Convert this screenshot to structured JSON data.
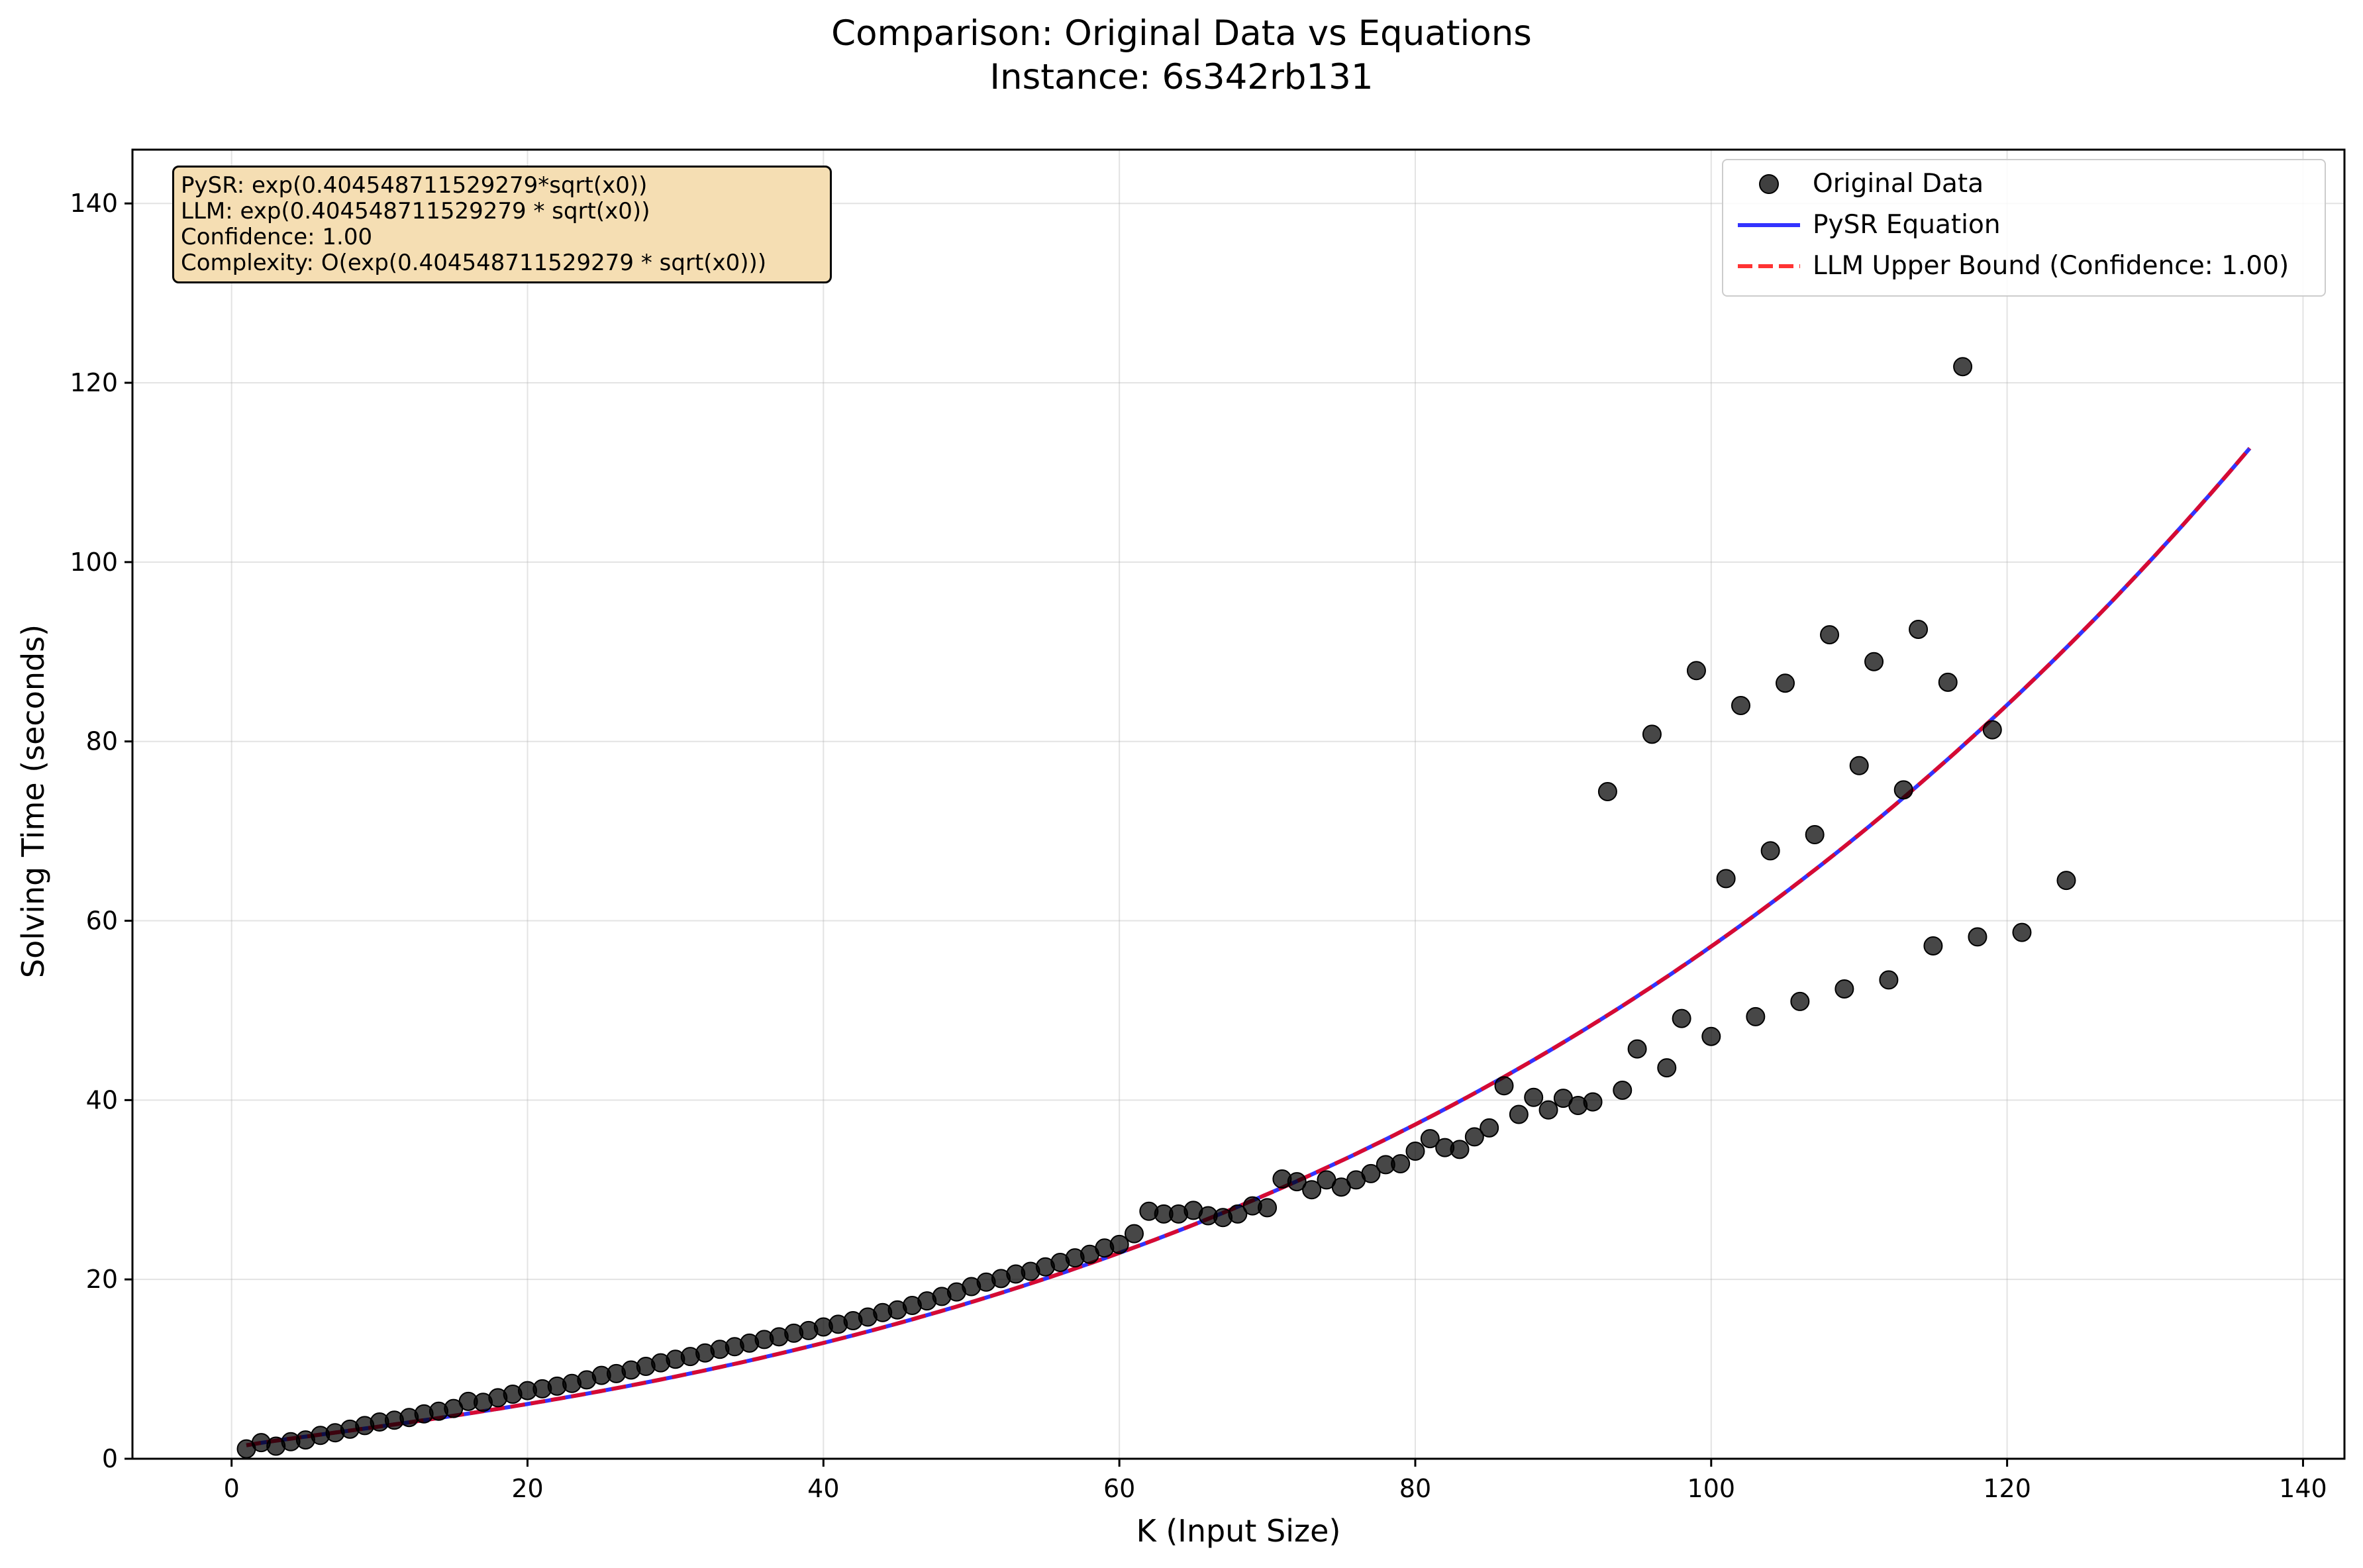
{
  "chart_data": {
    "type": "scatter",
    "title": "Comparison: Original Data vs Equations",
    "subtitle": "Instance: 6s342rb131",
    "xlabel": "K (Input Size)",
    "ylabel": "Solving Time (seconds)",
    "xlim": [
      -6.7,
      142.8
    ],
    "ylim": [
      0,
      146
    ],
    "xticks": [
      0,
      20,
      40,
      60,
      80,
      100,
      120,
      140
    ],
    "yticks": [
      0,
      20,
      40,
      60,
      80,
      100,
      120,
      140
    ],
    "grid": true,
    "legend_placement": "top-right",
    "annotation": [
      "PySR: exp(0.404548711529279*sqrt(x0))",
      "LLM: exp(0.404548711529279 * sqrt(x0))",
      "Confidence: 1.00",
      "Complexity: O(exp(0.404548711529279 * sqrt(x0)))"
    ],
    "series": [
      {
        "name": "Original Data",
        "kind": "scatter",
        "color": "#404040",
        "points": [
          [
            1,
            1.1
          ],
          [
            2,
            1.8
          ],
          [
            3,
            1.4
          ],
          [
            4,
            1.9
          ],
          [
            5,
            2.1
          ],
          [
            6,
            2.6
          ],
          [
            7,
            2.9
          ],
          [
            8,
            3.3
          ],
          [
            9,
            3.7
          ],
          [
            10,
            4.1
          ],
          [
            11,
            4.3
          ],
          [
            12,
            4.6
          ],
          [
            13,
            5.0
          ],
          [
            14,
            5.3
          ],
          [
            15,
            5.6
          ],
          [
            16,
            6.4
          ],
          [
            17,
            6.3
          ],
          [
            18,
            6.8
          ],
          [
            19,
            7.2
          ],
          [
            20,
            7.6
          ],
          [
            21,
            7.8
          ],
          [
            22,
            8.1
          ],
          [
            23,
            8.4
          ],
          [
            24,
            8.8
          ],
          [
            25,
            9.3
          ],
          [
            26,
            9.5
          ],
          [
            27,
            9.9
          ],
          [
            28,
            10.3
          ],
          [
            29,
            10.7
          ],
          [
            30,
            11.1
          ],
          [
            31,
            11.4
          ],
          [
            32,
            11.8
          ],
          [
            33,
            12.2
          ],
          [
            34,
            12.5
          ],
          [
            35,
            12.9
          ],
          [
            36,
            13.3
          ],
          [
            37,
            13.6
          ],
          [
            38,
            14.0
          ],
          [
            39,
            14.3
          ],
          [
            40,
            14.7
          ],
          [
            41,
            15.0
          ],
          [
            42,
            15.4
          ],
          [
            43,
            15.8
          ],
          [
            44,
            16.3
          ],
          [
            45,
            16.6
          ],
          [
            46,
            17.1
          ],
          [
            47,
            17.6
          ],
          [
            48,
            18.1
          ],
          [
            49,
            18.6
          ],
          [
            50,
            19.2
          ],
          [
            51,
            19.7
          ],
          [
            52,
            20.1
          ],
          [
            53,
            20.6
          ],
          [
            54,
            20.9
          ],
          [
            55,
            21.4
          ],
          [
            56,
            21.9
          ],
          [
            57,
            22.4
          ],
          [
            58,
            22.8
          ],
          [
            59,
            23.5
          ],
          [
            60,
            23.9
          ],
          [
            61,
            25.1
          ],
          [
            62,
            27.6
          ],
          [
            63,
            27.3
          ],
          [
            64,
            27.3
          ],
          [
            65,
            27.7
          ],
          [
            66,
            27.1
          ],
          [
            67,
            26.9
          ],
          [
            68,
            27.3
          ],
          [
            69,
            28.2
          ],
          [
            70,
            28.0
          ],
          [
            71,
            31.2
          ],
          [
            72,
            30.9
          ],
          [
            73,
            30.0
          ],
          [
            74,
            31.1
          ],
          [
            75,
            30.3
          ],
          [
            76,
            31.1
          ],
          [
            77,
            31.8
          ],
          [
            78,
            32.8
          ],
          [
            79,
            32.9
          ],
          [
            80,
            34.3
          ],
          [
            81,
            35.7
          ],
          [
            82,
            34.7
          ],
          [
            83,
            34.5
          ],
          [
            84,
            35.9
          ],
          [
            85,
            36.9
          ],
          [
            86,
            41.6
          ],
          [
            87,
            38.4
          ],
          [
            88,
            40.3
          ],
          [
            89,
            38.9
          ],
          [
            90,
            40.2
          ],
          [
            91,
            39.4
          ],
          [
            92,
            39.8
          ],
          [
            93,
            74.4
          ],
          [
            94,
            41.1
          ],
          [
            95,
            45.7
          ],
          [
            96,
            80.8
          ],
          [
            97,
            43.6
          ],
          [
            98,
            49.1
          ],
          [
            99,
            87.9
          ],
          [
            100,
            47.1
          ],
          [
            101,
            64.7
          ],
          [
            102,
            84.0
          ],
          [
            103,
            49.3
          ],
          [
            104,
            67.8
          ],
          [
            105,
            86.5
          ],
          [
            106,
            51.0
          ],
          [
            107,
            69.6
          ],
          [
            108,
            91.9
          ],
          [
            109,
            52.4
          ],
          [
            110,
            77.3
          ],
          [
            111,
            88.9
          ],
          [
            112,
            53.4
          ],
          [
            113,
            74.6
          ],
          [
            114,
            92.5
          ],
          [
            115,
            57.2
          ],
          [
            116,
            86.6
          ],
          [
            117,
            121.8
          ],
          [
            118,
            58.2
          ],
          [
            119,
            81.3
          ],
          [
            121,
            58.7
          ],
          [
            124,
            64.5
          ]
        ]
      },
      {
        "name": "PySR Equation",
        "kind": "line",
        "style": "solid",
        "color": "#0000ff",
        "expression": "exp(0.404548711529279*sqrt(x0))",
        "x_range": [
          1,
          136.4
        ]
      },
      {
        "name": "LLM Upper Bound (Confidence: 1.00)",
        "kind": "line",
        "style": "dashed",
        "color": "#ff0000",
        "expression": "exp(0.404548711529279 * sqrt(x0))",
        "x_range": [
          1,
          136.4
        ]
      }
    ]
  }
}
